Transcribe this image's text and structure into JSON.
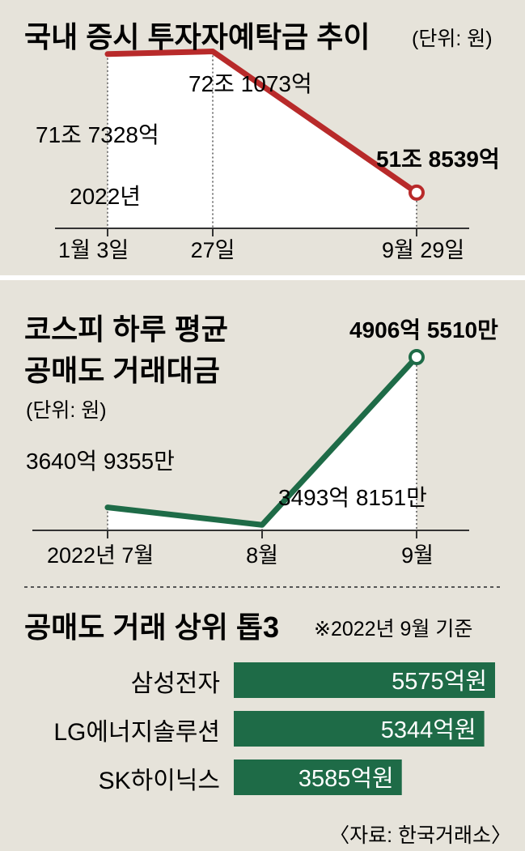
{
  "colors": {
    "panel_bg": "#e6e3da",
    "line1": "#b82a2a",
    "line2": "#1e6b47",
    "bar": "#1e6b47",
    "axis": "#333333"
  },
  "chart_data": [
    {
      "type": "line",
      "title": "국내 증시 투자자예탁금 추이",
      "unit": "(단위: 원)",
      "x": [
        "1월 3일",
        "27일",
        "9월 29일"
      ],
      "year_note": "2022년",
      "values": [
        717328,
        721073,
        518539
      ],
      "value_unit": "억",
      "value_labels": [
        "71조 7328억",
        "72조 1073억",
        "51조 8539억"
      ],
      "ylim": [
        400000,
        760000
      ],
      "grid": false,
      "legend": "none"
    },
    {
      "type": "line",
      "title": "코스피 하루 평균",
      "title_line2": "공매도 거래대금",
      "unit": "(단위: 원)",
      "x": [
        "2022년 7월",
        "8월",
        "9월"
      ],
      "values": [
        36409355,
        34938151,
        49065510
      ],
      "value_unit": "만",
      "value_labels": [
        "3640억 9355만",
        "3493억 8151만",
        "4906억 5510만"
      ],
      "ylim": [
        28000000,
        50500000
      ],
      "grid": false,
      "legend": "none"
    },
    {
      "type": "bar",
      "orientation": "horizontal",
      "title": "공매도 거래 상위 톱3",
      "note": "※2022년 9월 기준",
      "categories": [
        "삼성전자",
        "LG에너지솔루션",
        "SK하이닉스"
      ],
      "values": [
        5575,
        5344,
        3585
      ],
      "value_labels": [
        "5575억원",
        "5344억원",
        "3585억원"
      ],
      "value_unit": "억원",
      "xlim": [
        0,
        5900
      ]
    }
  ],
  "source": "〈자료: 한국거래소〉"
}
